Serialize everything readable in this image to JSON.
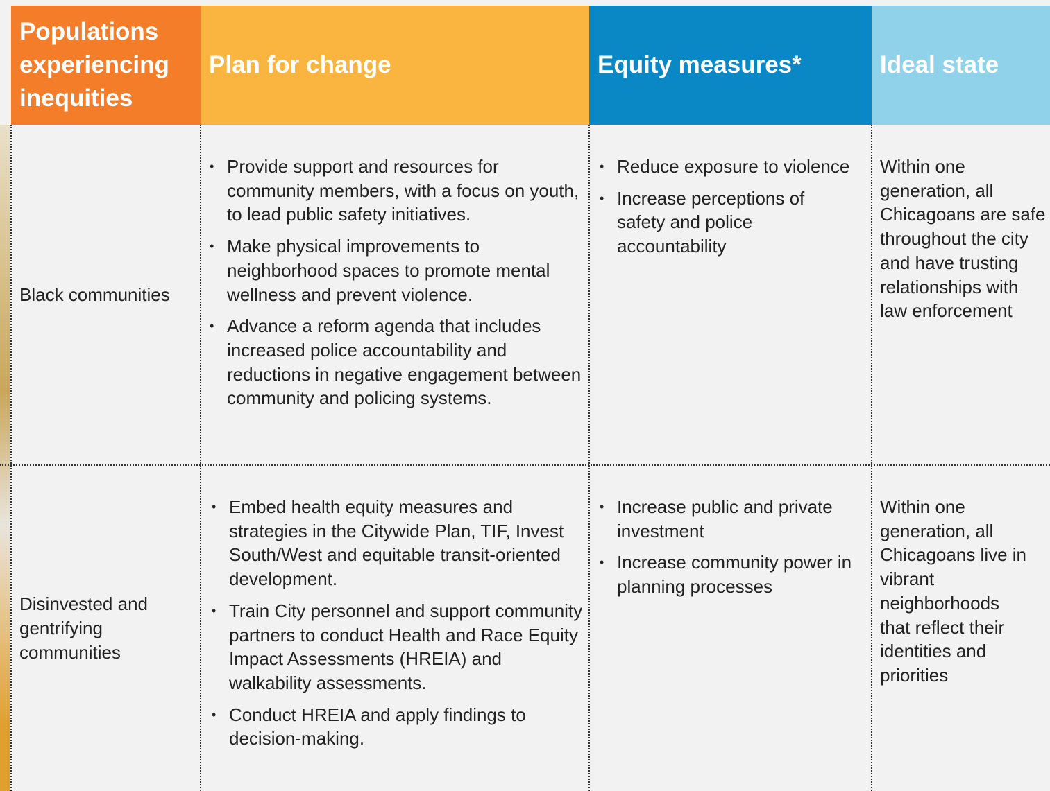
{
  "table": {
    "headers": [
      "Populations experiencing inequities",
      "Plan for change",
      "Equity measures*",
      "Ideal state"
    ],
    "rows": [
      {
        "population": "Black communities",
        "plan": [
          "Provide support and resources for community members, with a focus on youth, to lead public safety initiatives.",
          "Make physical improvements to neighborhood spaces to promote mental wellness and prevent violence.",
          "Advance a reform agenda that includes increased police accountability and reductions in negative engagement between community and policing systems."
        ],
        "measures": [
          "Reduce exposure to violence",
          "Increase perceptions of safety and police accountability"
        ],
        "ideal": "Within one generation, all Chicagoans are safe throughout the city and have trusting relationships with law enforcement"
      },
      {
        "population": "Disinvested and gentrifying communities",
        "plan": [
          "Embed health equity measures and strategies in the Citywide Plan, TIF, Invest South/West and equitable transit-oriented development.",
          "Train City personnel and support community partners to conduct Health and Race Equity Impact Assessments (HREIA) and walkability assessments.",
          "Conduct HREIA and apply findings to decision-making."
        ],
        "measures": [
          "Increase public and private investment",
          "Increase community power in planning processes"
        ],
        "ideal": "Within one generation, all Chicagoans live in vibrant neighborhoods that reflect their identities and priorities"
      }
    ]
  }
}
